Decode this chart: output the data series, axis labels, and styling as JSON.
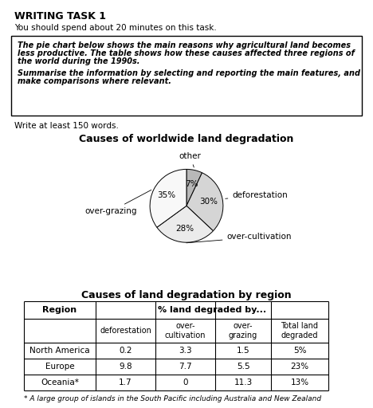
{
  "title_main": "WRITING TASK 1",
  "subtitle": "You should spend about 20 minutes on this task.",
  "box_lines": [
    "The pie chart below shows the main reasons why agricultural land becomes",
    "less productive. The table shows how these causes affected three regions of",
    "the world during the 1990s.",
    "",
    "Summarise the information by selecting and reporting the main features, and",
    "make comparisons where relevant."
  ],
  "write_text": "Write at least 150 words.",
  "pie_title": "Causes of worldwide land degradation",
  "pie_labels": [
    "other",
    "deforestation",
    "over-cultivation",
    "over-grazing"
  ],
  "pie_sizes": [
    7,
    30,
    28,
    35
  ],
  "pie_pct_labels": [
    "7%",
    "30%",
    "28%",
    "35%"
  ],
  "pie_colors": [
    "#b8b8b8",
    "#d5d5d5",
    "#ebebeb",
    "#f8f8f8"
  ],
  "table_title": "Causes of land degradation by region",
  "table_sub_headers": [
    "deforestation",
    "over-\ncultivation",
    "over-\ngrazing",
    "Total land\ndegraded"
  ],
  "table_rows": [
    [
      "North America",
      "0.2",
      "3.3",
      "1.5",
      "5%"
    ],
    [
      "Europe",
      "9.8",
      "7.7",
      "5.5",
      "23%"
    ],
    [
      "Oceania*",
      "1.7",
      "0",
      "11.3",
      "13%"
    ]
  ],
  "footnote": "* A large group of islands in the South Pacific including Australia and New Zealand",
  "bg": "#ffffff"
}
